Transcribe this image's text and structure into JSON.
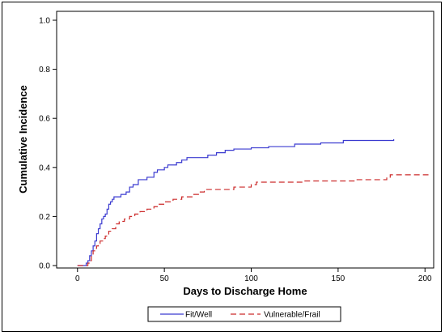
{
  "chart_data": {
    "type": "line",
    "xlabel": "Days to Discharge Home",
    "ylabel": "Cumulative Incidence",
    "xlim": [
      -12,
      205
    ],
    "ylim": [
      0,
      1.0
    ],
    "x_ticks": [
      0,
      50,
      100,
      150,
      200
    ],
    "y_ticks": [
      0.0,
      0.2,
      0.4,
      0.6,
      0.8,
      1.0
    ],
    "x_tick_labels": [
      "0",
      "50",
      "100",
      "150",
      "200"
    ],
    "y_tick_labels": [
      "0.0",
      "0.2",
      "0.4",
      "0.6",
      "0.8",
      "1.0"
    ],
    "grid": false,
    "legend_position": "bottom",
    "step": true,
    "series": [
      {
        "name": "Fit/Well",
        "color": "#3b3bd0",
        "dash": "solid",
        "points": [
          [
            0,
            0.0
          ],
          [
            3,
            0.0
          ],
          [
            5,
            0.01
          ],
          [
            6,
            0.02
          ],
          [
            7,
            0.04
          ],
          [
            8,
            0.06
          ],
          [
            9,
            0.08
          ],
          [
            10,
            0.1
          ],
          [
            11,
            0.13
          ],
          [
            12,
            0.15
          ],
          [
            13,
            0.17
          ],
          [
            14,
            0.19
          ],
          [
            15,
            0.2
          ],
          [
            16,
            0.21
          ],
          [
            17,
            0.23
          ],
          [
            18,
            0.25
          ],
          [
            19,
            0.26
          ],
          [
            20,
            0.27
          ],
          [
            21,
            0.28
          ],
          [
            25,
            0.29
          ],
          [
            28,
            0.3
          ],
          [
            30,
            0.32
          ],
          [
            32,
            0.33
          ],
          [
            35,
            0.35
          ],
          [
            40,
            0.36
          ],
          [
            44,
            0.38
          ],
          [
            46,
            0.39
          ],
          [
            50,
            0.4
          ],
          [
            52,
            0.41
          ],
          [
            57,
            0.42
          ],
          [
            60,
            0.43
          ],
          [
            63,
            0.44
          ],
          [
            75,
            0.45
          ],
          [
            80,
            0.46
          ],
          [
            85,
            0.47
          ],
          [
            90,
            0.475
          ],
          [
            100,
            0.48
          ],
          [
            110,
            0.485
          ],
          [
            125,
            0.495
          ],
          [
            140,
            0.5
          ],
          [
            153,
            0.51
          ],
          [
            182,
            0.515
          ]
        ]
      },
      {
        "name": "Vulnerable/Frail",
        "color": "#cc2a2a",
        "dash": "dashed",
        "points": [
          [
            0,
            0.0
          ],
          [
            4,
            0.0
          ],
          [
            6,
            0.01
          ],
          [
            7,
            0.02
          ],
          [
            8,
            0.04
          ],
          [
            9,
            0.06
          ],
          [
            10,
            0.07
          ],
          [
            11,
            0.08
          ],
          [
            12,
            0.09
          ],
          [
            13,
            0.1
          ],
          [
            15,
            0.11
          ],
          [
            16,
            0.12
          ],
          [
            18,
            0.14
          ],
          [
            20,
            0.15
          ],
          [
            22,
            0.17
          ],
          [
            24,
            0.18
          ],
          [
            27,
            0.19
          ],
          [
            30,
            0.2
          ],
          [
            33,
            0.21
          ],
          [
            36,
            0.22
          ],
          [
            40,
            0.23
          ],
          [
            44,
            0.24
          ],
          [
            47,
            0.25
          ],
          [
            50,
            0.26
          ],
          [
            55,
            0.27
          ],
          [
            60,
            0.28
          ],
          [
            67,
            0.29
          ],
          [
            70,
            0.3
          ],
          [
            73,
            0.31
          ],
          [
            90,
            0.32
          ],
          [
            100,
            0.33
          ],
          [
            103,
            0.34
          ],
          [
            130,
            0.345
          ],
          [
            160,
            0.35
          ],
          [
            178,
            0.36
          ],
          [
            180,
            0.37
          ],
          [
            202,
            0.37
          ]
        ]
      }
    ]
  }
}
